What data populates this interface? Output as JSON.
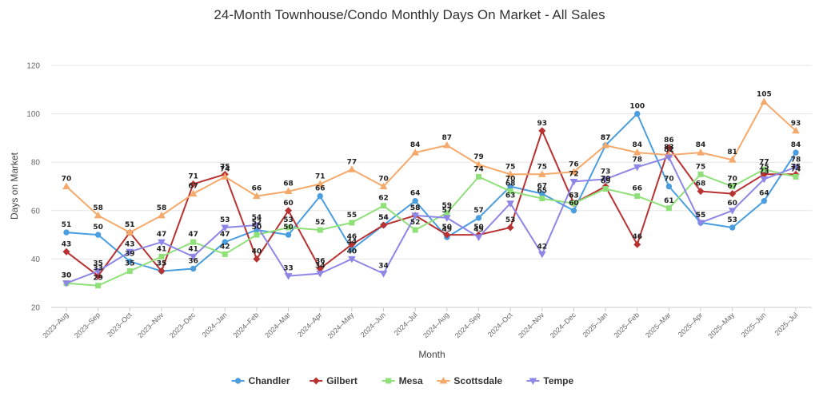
{
  "chart_data": {
    "type": "line",
    "title": "24-Month Townhouse/Condo Monthly Days On Market - All Sales",
    "xlabel": "Month",
    "ylabel": "Days on Market",
    "ylim": [
      20,
      120
    ],
    "yticks": [
      "20",
      "40",
      "60",
      "80",
      "100",
      "120"
    ],
    "grid": true,
    "legend_position": "bottom",
    "categories": [
      "2023–Aug",
      "2023–Sep",
      "2023–Oct",
      "2023–Nov",
      "2023–Dec",
      "2024–Jan",
      "2024–Feb",
      "2024–Mar",
      "2024–Apr",
      "2024–May",
      "2024–Jun",
      "2024–Jul",
      "2024–Aug",
      "2024–Sep",
      "2024–Oct",
      "2024–Nov",
      "2024–Dec",
      "2025–Jan",
      "2025–Feb",
      "2025–Mar",
      "2025–Apr",
      "2025–May",
      "2025–Jun",
      "2025–Jul"
    ],
    "series": [
      {
        "name": "Chandler",
        "color": "#4a9ee0",
        "marker": "circle",
        "values": [
          51,
          50,
          39,
          35,
          36,
          47,
          52,
          50,
          66,
          44,
          54,
          64,
          49,
          57,
          70,
          67,
          60,
          87,
          100,
          70,
          55,
          53,
          64,
          84
        ]
      },
      {
        "name": "Gilbert",
        "color": "#b83232",
        "marker": "diamond",
        "values": [
          43,
          33,
          51,
          35,
          71,
          75,
          40,
          60,
          36,
          46,
          54,
          58,
          50,
          50,
          53,
          93,
          63,
          70,
          46,
          86,
          68,
          67,
          75,
          75
        ]
      },
      {
        "name": "Mesa",
        "color": "#90e07a",
        "marker": "square",
        "values": [
          30,
          29,
          35,
          41,
          47,
          42,
          50,
          53,
          52,
          55,
          62,
          52,
          59,
          74,
          68,
          65,
          63,
          69,
          66,
          61,
          75,
          70,
          77,
          74
        ]
      },
      {
        "name": "Scottsdale",
        "color": "#f5a96a",
        "marker": "triangle",
        "values": [
          70,
          58,
          51,
          58,
          67,
          74,
          66,
          68,
          71,
          77,
          70,
          84,
          87,
          79,
          75,
          75,
          76,
          87,
          84,
          83,
          84,
          81,
          105,
          93
        ]
      },
      {
        "name": "Tempe",
        "color": "#8e86e6",
        "marker": "triangle-down",
        "values": [
          30,
          35,
          43,
          47,
          41,
          53,
          54,
          33,
          34,
          40,
          34,
          58,
          57,
          49,
          63,
          42,
          72,
          73,
          78,
          82,
          55,
          60,
          73,
          78
        ]
      }
    ]
  }
}
